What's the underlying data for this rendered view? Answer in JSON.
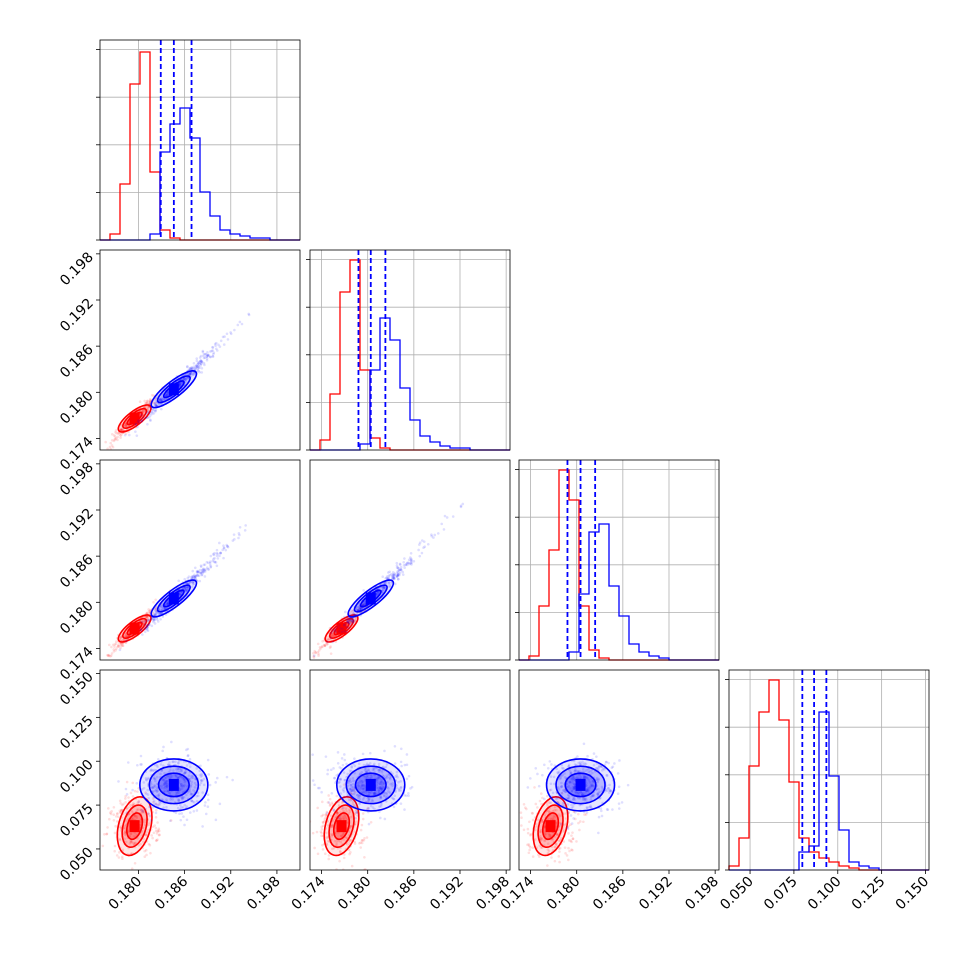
{
  "colors": {
    "red": "#ff0000",
    "blue": "#0000ff",
    "grid": "#b0b0b0",
    "frame": "#000000"
  },
  "chart_data": {
    "type": "corner",
    "title": "",
    "grid": true,
    "parameters": [
      {
        "index": 0,
        "range": [
          0.175,
          0.201
        ],
        "ticks": [
          "0.180",
          "0.186",
          "0.192",
          "0.198"
        ],
        "tick_values": [
          0.18,
          0.186,
          0.192,
          0.198
        ]
      },
      {
        "index": 1,
        "range": [
          0.1725,
          0.1985
        ],
        "ticks": [
          "0.174",
          "0.180",
          "0.186",
          "0.192",
          "0.198"
        ],
        "tick_values": [
          0.174,
          0.18,
          0.186,
          0.192,
          0.198
        ]
      },
      {
        "index": 2,
        "range": [
          0.1725,
          0.1985
        ],
        "ticks": [
          "0.174",
          "0.180",
          "0.186",
          "0.192",
          "0.198"
        ],
        "tick_values": [
          0.174,
          0.18,
          0.186,
          0.192,
          0.198
        ]
      },
      {
        "index": 3,
        "range": [
          0.038,
          0.152
        ],
        "ticks": [
          "0.050",
          "0.075",
          "0.100",
          "0.125",
          "0.150"
        ],
        "tick_values": [
          0.05,
          0.075,
          0.1,
          0.125,
          0.15
        ]
      }
    ],
    "series": [
      {
        "color": "red",
        "histograms": [
          {
            "edges_from": 0.175,
            "bin_width": 0.0013,
            "counts": [
              0,
              0.03,
              0.28,
              0.78,
              0.94,
              0.34,
              0.05,
              0.01,
              0,
              0,
              0,
              0,
              0,
              0,
              0,
              0,
              0,
              0,
              0,
              0
            ]
          },
          {
            "edges_from": 0.1725,
            "bin_width": 0.0013,
            "counts": [
              0,
              0.05,
              0.28,
              0.79,
              0.95,
              0.4,
              0.06,
              0.01,
              0,
              0,
              0,
              0,
              0,
              0,
              0,
              0,
              0,
              0,
              0,
              0
            ]
          },
          {
            "edges_from": 0.1725,
            "bin_width": 0.0013,
            "counts": [
              0,
              0.02,
              0.27,
              0.55,
              0.95,
              0.8,
              0.27,
              0.05,
              0.01,
              0,
              0,
              0,
              0,
              0,
              0,
              0,
              0,
              0,
              0,
              0
            ]
          },
          {
            "edges_from": 0.038,
            "bin_width": 0.0057,
            "counts": [
              0.02,
              0.16,
              0.52,
              0.79,
              0.95,
              0.75,
              0.44,
              0.16,
              0.09,
              0.06,
              0.04,
              0.02,
              0.01,
              0,
              0,
              0,
              0,
              0,
              0,
              0
            ]
          }
        ],
        "center": [
          0.1795,
          0.1766,
          0.1766,
          0.063
        ],
        "scatter_samples": 280
      },
      {
        "color": "blue",
        "histograms": [
          {
            "edges_from": 0.175,
            "bin_width": 0.0013,
            "counts": [
              0,
              0,
              0,
              0,
              0,
              0.03,
              0.44,
              0.58,
              0.66,
              0.51,
              0.24,
              0.12,
              0.05,
              0.03,
              0.02,
              0.01,
              0.01,
              0,
              0,
              0
            ]
          },
          {
            "edges_from": 0.1725,
            "bin_width": 0.0013,
            "counts": [
              0,
              0,
              0,
              0,
              0,
              0.03,
              0.4,
              0.66,
              0.55,
              0.31,
              0.15,
              0.07,
              0.04,
              0.02,
              0.01,
              0.01,
              0,
              0,
              0,
              0
            ]
          },
          {
            "edges_from": 0.1725,
            "bin_width": 0.0013,
            "counts": [
              0,
              0,
              0,
              0,
              0,
              0.04,
              0.33,
              0.64,
              0.68,
              0.37,
              0.22,
              0.08,
              0.04,
              0.02,
              0.01,
              0,
              0,
              0,
              0,
              0
            ]
          },
          {
            "edges_from": 0.038,
            "bin_width": 0.0057,
            "counts": [
              0,
              0,
              0,
              0,
              0,
              0,
              0,
              0.09,
              0.12,
              0.79,
              0.47,
              0.2,
              0.04,
              0.02,
              0.01,
              0,
              0,
              0,
              0,
              0
            ]
          }
        ],
        "quantile_lines": [
          [
            0.1829,
            0.1846,
            0.1869
          ],
          [
            0.1788,
            0.1804,
            0.1823
          ],
          [
            0.1788,
            0.1805,
            0.1824
          ],
          [
            0.0798,
            0.0865,
            0.0935
          ]
        ],
        "center": [
          0.1846,
          0.1804,
          0.1805,
          0.0865
        ],
        "scatter_samples": 420
      }
    ]
  }
}
